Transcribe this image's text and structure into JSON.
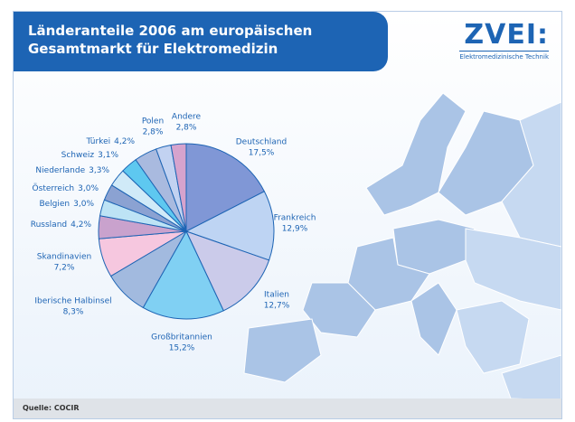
{
  "header": {
    "title": "Länderanteile 2006 am europäischen Gesamtmarkt für Elektromedizin",
    "logo": "ZVEI:",
    "logo_subtitle": "Elektromedizinische Technik"
  },
  "chart_data": {
    "type": "pie",
    "categories": [
      "Deutschland",
      "Frankreich",
      "Italien",
      "Großbritannien",
      "Iberische Halbinsel",
      "Skandinavien",
      "Russland",
      "Belgien",
      "Österreich",
      "Niederlande",
      "Schweiz",
      "Türkei",
      "Polen",
      "Andere"
    ],
    "values": [
      17.5,
      12.9,
      12.7,
      15.2,
      8.3,
      7.2,
      4.2,
      3.0,
      3.0,
      3.3,
      3.1,
      4.2,
      2.8,
      2.8
    ],
    "value_labels": [
      "17,5%",
      "12,9%",
      "12,7%",
      "15,2%",
      "8,3%",
      "7,2%",
      "4,2%",
      "3,0%",
      "3,0%",
      "3,3%",
      "3,1%",
      "4,2%",
      "2,8%",
      "2,8%"
    ],
    "colors": [
      "#8097d6",
      "#bed4f3",
      "#cbcbea",
      "#80d0f3",
      "#a2badf",
      "#f6c7df",
      "#c9a2cd",
      "#bde3f5",
      "#8ba2d2",
      "#d0eaf8",
      "#5ec8f0",
      "#a9badf",
      "#c2d2f1",
      "#d6a3cd"
    ]
  },
  "footer": {
    "source": "Quelle: COCIR"
  }
}
